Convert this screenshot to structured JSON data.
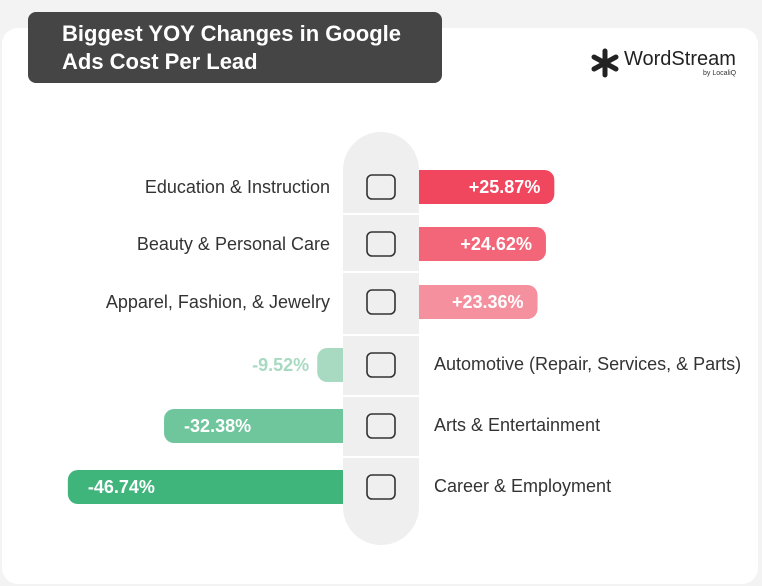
{
  "chart_data": {
    "type": "diverging-bar",
    "title": "Biggest YOY Changes in Google Ads Cost Per Lead",
    "logo": {
      "name": "WordStream",
      "byline": "by LocaliQ"
    },
    "categories": [
      "Education & Instruction",
      "Beauty & Personal Care",
      "Apparel, Fashion, & Jewelry",
      "Automotive (Repair, Services, & Parts)",
      "Arts & Entertainment",
      "Career & Employment"
    ],
    "values": [
      25.87,
      24.62,
      23.36,
      -9.52,
      -32.38,
      -46.74
    ],
    "value_labels": [
      "+25.87%",
      "+24.62%",
      "+23.36%",
      "-9.52%",
      "-32.38%",
      "-46.74%"
    ],
    "colors": [
      "#f0465e",
      "#f36679",
      "#f5919f",
      "#a8dac2",
      "#6fc59c",
      "#3fb57c"
    ]
  }
}
